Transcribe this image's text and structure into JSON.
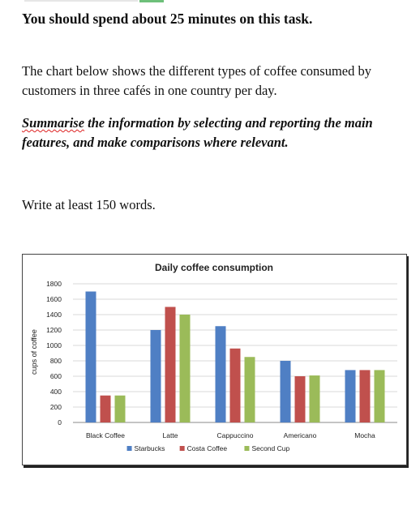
{
  "task": {
    "heading": "You should spend about 25 minutes on this task.",
    "intro": "The chart below shows the different types of coffee consumed by customers in three cafés in one country per day.",
    "instruction_flagged_word": "Summarise",
    "instruction_rest": " the information by selecting and reporting the main features, and make comparisons where relevant.",
    "word_count": "Write at least 150 words."
  },
  "chart_data": {
    "type": "bar",
    "title": "Daily coffee consumption",
    "xlabel": "",
    "ylabel": "cups of coffee",
    "ylim": [
      0,
      1800
    ],
    "yticks": [
      0,
      200,
      400,
      600,
      800,
      1000,
      1200,
      1400,
      1600,
      1800
    ],
    "grid": true,
    "legend_position": "bottom",
    "categories": [
      "Black Coffee",
      "Latte",
      "Cappuccino",
      "Americano",
      "Mocha"
    ],
    "series": [
      {
        "name": "Starbucks",
        "color": "#4f7fc4",
        "values": [
          1700,
          1200,
          1250,
          800,
          680
        ]
      },
      {
        "name": "Costa Coffee",
        "color": "#c0504d",
        "values": [
          350,
          1500,
          960,
          600,
          680
        ]
      },
      {
        "name": "Second Cup",
        "color": "#9bbb59",
        "values": [
          350,
          1400,
          850,
          610,
          680
        ]
      }
    ]
  },
  "colors": {
    "accent_green": "#6ec07a",
    "spellcheck_underline": "#dd2222"
  }
}
